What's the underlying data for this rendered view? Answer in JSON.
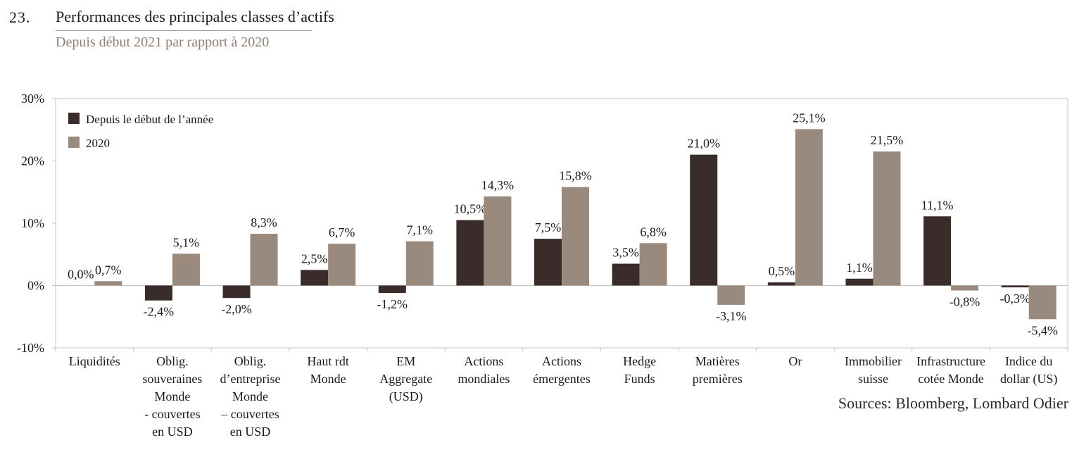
{
  "header": {
    "number": "23.",
    "title": "Performances des principales classes d’actifs",
    "subtitle": "Depuis début 2021 par rapport à 2020"
  },
  "source": "Sources: Bloomberg, Lombard Odier",
  "colors": {
    "ytd": "#3a2c2a",
    "y2020": "#9a8a7e",
    "frame": "#c9c2bc",
    "text": "#1a1a1a"
  },
  "chart_data": {
    "type": "bar",
    "title": "Performances des principales classes d’actifs",
    "subtitle": "Depuis début 2021 par rapport à 2020",
    "categories": [
      [
        "Liquidités"
      ],
      [
        "Oblig.",
        "souveraines",
        "Monde",
        "- couvertes",
        "en USD"
      ],
      [
        "Oblig.",
        "d’entreprise",
        "Monde",
        "– couvertes",
        "en USD"
      ],
      [
        "Haut rdt",
        "Monde"
      ],
      [
        "EM",
        "Aggregate",
        "(USD)"
      ],
      [
        "Actions",
        "mondiales"
      ],
      [
        "Actions",
        "émergentes"
      ],
      [
        "Hedge",
        "Funds"
      ],
      [
        "Matières",
        "premières"
      ],
      [
        "Or"
      ],
      [
        "Immobilier",
        "suisse"
      ],
      [
        "Infrastructure",
        "cotée Monde"
      ],
      [
        "Indice du",
        "dollar (US)"
      ]
    ],
    "series": [
      {
        "name": "Depuis le début de l’année",
        "values": [
          0.0,
          -2.4,
          -2.0,
          2.5,
          -1.2,
          10.5,
          7.5,
          3.5,
          21.0,
          0.5,
          1.1,
          11.1,
          -0.3
        ],
        "labels": [
          "0,0%",
          "-2,4%",
          "-2,0%",
          "2,5%",
          "-1,2%",
          "10,5%",
          "7,5%",
          "3,5%",
          "21,0%",
          "0,5%",
          "1,1%",
          "11,1%",
          "-0,3%"
        ]
      },
      {
        "name": "2020",
        "values": [
          0.7,
          5.1,
          8.3,
          6.7,
          7.1,
          14.3,
          15.8,
          6.8,
          -3.1,
          25.1,
          21.5,
          -0.8,
          -5.4
        ],
        "labels": [
          "0,7%",
          "5,1%",
          "8,3%",
          "6,7%",
          "7,1%",
          "14,3%",
          "15,8%",
          "6,8%",
          "-3,1%",
          "25,1%",
          "21,5%",
          "-0,8%",
          "-5,4%"
        ]
      }
    ],
    "ylim": [
      -10,
      30
    ],
    "yticks": [
      -10,
      0,
      10,
      20,
      30
    ],
    "ytick_labels": [
      "-10%",
      "0%",
      "10%",
      "20%",
      "30%"
    ],
    "xlabel": "",
    "ylabel": "",
    "legend_position": "top-left",
    "grid": false
  }
}
